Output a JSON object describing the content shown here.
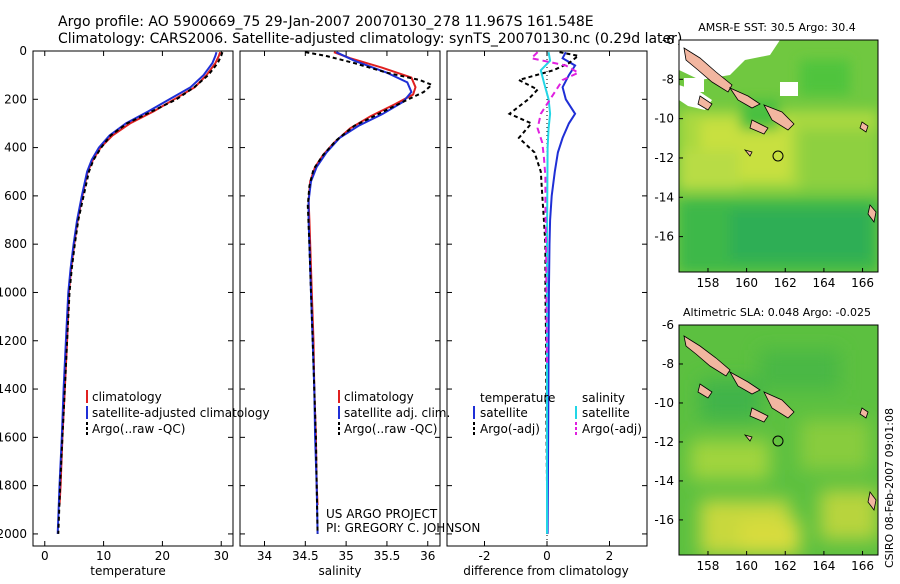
{
  "header": {
    "line1": "Argo profile: AO 5900669_75 29-Jan-2007 20070130_278 11.967S 161.548E",
    "line2": "Climatology: CARS2006. Satellite-adjusted climatology: synTS_20070130.nc (0.29d later)"
  },
  "footer": {
    "project": "US ARGO PROJECT",
    "pi": "PI: GREGORY C. JOHNSON",
    "stamp": "CSIRO 08-Feb-2007 09:01:08"
  },
  "colors": {
    "climatology": "#e02020",
    "satellite": "#1f2fd6",
    "argo": "#000000",
    "satellite_diff": "#22d6e6",
    "argo_diff": "#e020e0",
    "land": "#f2b6a0"
  },
  "chart_data": [
    {
      "type": "line",
      "id": "temperature",
      "xlabel": "temperature",
      "ylabel": "",
      "xlim": [
        -2,
        32
      ],
      "ylim": [
        2050,
        0
      ],
      "xticks": [
        0,
        10,
        20,
        30
      ],
      "yticks": [
        0,
        200,
        400,
        600,
        800,
        1000,
        1200,
        1400,
        1600,
        1800,
        2000
      ],
      "legend": [
        "climatology",
        "satellite-adjusted climatology",
        "Argo(..raw -QC)"
      ],
      "series": [
        {
          "name": "climatology",
          "color": "#e02020",
          "dash": "",
          "points": [
            [
              29.8,
              5
            ],
            [
              29.6,
              20
            ],
            [
              29.0,
              50
            ],
            [
              27.5,
              100
            ],
            [
              25.5,
              150
            ],
            [
              22.0,
              200
            ],
            [
              18.5,
              250
            ],
            [
              14.5,
              300
            ],
            [
              11.5,
              350
            ],
            [
              9.5,
              400
            ],
            [
              8.2,
              450
            ],
            [
              7.3,
              500
            ],
            [
              6.4,
              600
            ],
            [
              5.6,
              700
            ],
            [
              5.0,
              800
            ],
            [
              4.5,
              900
            ],
            [
              4.1,
              1000
            ],
            [
              3.8,
              1200
            ],
            [
              3.4,
              1400
            ],
            [
              3.0,
              1600
            ],
            [
              2.7,
              1800
            ],
            [
              2.5,
              1880
            ]
          ]
        },
        {
          "name": "satellite-adjusted climatology",
          "color": "#1f2fd6",
          "dash": "",
          "points": [
            [
              29.2,
              5
            ],
            [
              29.0,
              20
            ],
            [
              28.5,
              50
            ],
            [
              27.0,
              100
            ],
            [
              24.8,
              150
            ],
            [
              21.2,
              200
            ],
            [
              17.6,
              250
            ],
            [
              13.8,
              300
            ],
            [
              11.0,
              350
            ],
            [
              9.2,
              400
            ],
            [
              8.0,
              450
            ],
            [
              7.2,
              500
            ],
            [
              6.3,
              600
            ],
            [
              5.5,
              700
            ],
            [
              4.9,
              800
            ],
            [
              4.4,
              900
            ],
            [
              4.0,
              1000
            ],
            [
              3.6,
              1200
            ],
            [
              3.2,
              1400
            ],
            [
              2.9,
              1600
            ],
            [
              2.5,
              1800
            ],
            [
              2.2,
              2000
            ]
          ]
        },
        {
          "name": "Argo(..raw -QC)",
          "color": "#000000",
          "dash": "4,3",
          "points": [
            [
              30.2,
              5
            ],
            [
              30.0,
              20
            ],
            [
              29.4,
              50
            ],
            [
              27.8,
              100
            ],
            [
              25.4,
              150
            ],
            [
              22.4,
              200
            ],
            [
              18.2,
              250
            ],
            [
              14.0,
              300
            ],
            [
              11.2,
              350
            ],
            [
              9.6,
              400
            ],
            [
              8.3,
              450
            ],
            [
              7.5,
              500
            ],
            [
              6.6,
              600
            ],
            [
              5.7,
              700
            ],
            [
              5.1,
              800
            ],
            [
              4.6,
              900
            ],
            [
              4.2,
              1000
            ],
            [
              3.8,
              1200
            ],
            [
              3.4,
              1400
            ],
            [
              3.0,
              1600
            ],
            [
              2.6,
              1800
            ],
            [
              2.3,
              2000
            ]
          ]
        }
      ]
    },
    {
      "type": "line",
      "id": "salinity",
      "xlabel": "salinity",
      "xlim": [
        33.7,
        36.15
      ],
      "ylim": [
        2050,
        0
      ],
      "xticks": [
        34,
        34.5,
        35,
        35.5,
        36
      ],
      "legend": [
        "climatology",
        "satellite adj. clim.",
        "Argo(..raw -QC)"
      ],
      "series": [
        {
          "name": "climatology",
          "color": "#e02020",
          "dash": "",
          "points": [
            [
              34.85,
              5
            ],
            [
              35.05,
              30
            ],
            [
              35.45,
              70
            ],
            [
              35.8,
              110
            ],
            [
              35.85,
              150
            ],
            [
              35.82,
              180
            ],
            [
              35.6,
              220
            ],
            [
              35.3,
              270
            ],
            [
              35.05,
              320
            ],
            [
              34.85,
              380
            ],
            [
              34.72,
              430
            ],
            [
              34.62,
              480
            ],
            [
              34.56,
              540
            ],
            [
              34.54,
              620
            ],
            [
              34.55,
              700
            ],
            [
              34.56,
              800
            ],
            [
              34.57,
              900
            ],
            [
              34.58,
              1000
            ],
            [
              34.6,
              1200
            ],
            [
              34.61,
              1400
            ],
            [
              34.63,
              1600
            ],
            [
              34.64,
              1800
            ],
            [
              34.65,
              1880
            ]
          ]
        },
        {
          "name": "satellite adj. clim.",
          "color": "#1f2fd6",
          "dash": "",
          "points": [
            [
              34.88,
              5
            ],
            [
              35.1,
              40
            ],
            [
              35.5,
              90
            ],
            [
              35.75,
              130
            ],
            [
              35.8,
              170
            ],
            [
              35.7,
              210
            ],
            [
              35.45,
              260
            ],
            [
              35.15,
              310
            ],
            [
              34.92,
              360
            ],
            [
              34.76,
              420
            ],
            [
              34.64,
              480
            ],
            [
              34.57,
              540
            ],
            [
              34.54,
              620
            ],
            [
              34.54,
              700
            ],
            [
              34.55,
              800
            ],
            [
              34.56,
              900
            ],
            [
              34.57,
              1000
            ],
            [
              34.59,
              1200
            ],
            [
              34.61,
              1400
            ],
            [
              34.62,
              1600
            ],
            [
              34.64,
              1800
            ],
            [
              34.65,
              2000
            ]
          ]
        },
        {
          "name": "Argo(..raw -QC)",
          "color": "#000000",
          "dash": "4,3",
          "points": [
            [
              34.5,
              5
            ],
            [
              34.75,
              20
            ],
            [
              35.1,
              50
            ],
            [
              35.5,
              90
            ],
            [
              35.9,
              120
            ],
            [
              36.05,
              140
            ],
            [
              35.95,
              170
            ],
            [
              35.7,
              210
            ],
            [
              35.4,
              260
            ],
            [
              35.1,
              310
            ],
            [
              34.88,
              370
            ],
            [
              34.72,
              430
            ],
            [
              34.6,
              490
            ],
            [
              34.55,
              560
            ],
            [
              34.53,
              640
            ],
            [
              34.54,
              720
            ],
            [
              34.55,
              800
            ],
            [
              34.56,
              900
            ],
            [
              34.57,
              1000
            ],
            [
              34.59,
              1200
            ],
            [
              34.61,
              1400
            ],
            [
              34.63,
              1600
            ],
            [
              34.64,
              1800
            ],
            [
              34.65,
              2000
            ]
          ]
        }
      ]
    },
    {
      "type": "line",
      "id": "difference",
      "xlabel": "difference from climatology",
      "xlim": [
        -3.2,
        3.2
      ],
      "ylim": [
        2050,
        0
      ],
      "xticks": [
        -2,
        0,
        2
      ],
      "legend_temperature": {
        "title": "temperature",
        "items": [
          "satellite",
          "Argo(-adj)"
        ]
      },
      "legend_salinity": {
        "title": "salinity",
        "items": [
          "satellite",
          "Argo(-adj)"
        ]
      },
      "series": [
        {
          "name": "temperature satellite",
          "color": "#1f2fd6",
          "dash": "",
          "points": [
            [
              0.6,
              5
            ],
            [
              0.5,
              30
            ],
            [
              0.9,
              60
            ],
            [
              0.7,
              100
            ],
            [
              0.5,
              150
            ],
            [
              0.6,
              200
            ],
            [
              0.9,
              260
            ],
            [
              0.7,
              300
            ],
            [
              0.5,
              360
            ],
            [
              0.35,
              420
            ],
            [
              0.25,
              500
            ],
            [
              0.15,
              600
            ],
            [
              0.1,
              700
            ],
            [
              0.08,
              800
            ],
            [
              0.06,
              1000
            ],
            [
              0.05,
              1200
            ],
            [
              0.04,
              1500
            ],
            [
              0.03,
              1800
            ],
            [
              0.02,
              2000
            ]
          ]
        },
        {
          "name": "temperature Argo(-adj)",
          "color": "#000000",
          "dash": "4,3",
          "points": [
            [
              0.4,
              5
            ],
            [
              1.0,
              20
            ],
            [
              0.7,
              50
            ],
            [
              0.2,
              80
            ],
            [
              -0.9,
              120
            ],
            [
              -0.3,
              160
            ],
            [
              -0.6,
              200
            ],
            [
              -1.2,
              260
            ],
            [
              -0.5,
              300
            ],
            [
              -0.9,
              360
            ],
            [
              -0.4,
              420
            ],
            [
              -0.2,
              500
            ],
            [
              -0.15,
              600
            ],
            [
              -0.1,
              700
            ],
            [
              -0.05,
              800
            ],
            [
              -0.05,
              1000
            ],
            [
              -0.03,
              1200
            ],
            [
              -0.02,
              1500
            ],
            [
              0.0,
              1800
            ],
            [
              0.0,
              2000
            ]
          ]
        },
        {
          "name": "salinity satellite",
          "color": "#22d6e6",
          "dash": "",
          "points": [
            [
              0.05,
              5
            ],
            [
              0.1,
              40
            ],
            [
              -0.2,
              80
            ],
            [
              -0.1,
              130
            ],
            [
              0.05,
              200
            ],
            [
              0.1,
              260
            ],
            [
              0.05,
              320
            ],
            [
              0.02,
              400
            ],
            [
              0.01,
              600
            ],
            [
              0.0,
              800
            ],
            [
              0.0,
              1200
            ],
            [
              0.0,
              1600
            ],
            [
              0.0,
              2000
            ]
          ]
        },
        {
          "name": "salinity Argo(-adj)",
          "color": "#e020e0",
          "dash": "6,4",
          "points": [
            [
              -0.3,
              5
            ],
            [
              -0.5,
              30
            ],
            [
              0.6,
              60
            ],
            [
              1.0,
              90
            ],
            [
              0.5,
              120
            ],
            [
              0.3,
              160
            ],
            [
              0.1,
              200
            ],
            [
              -0.2,
              260
            ],
            [
              -0.3,
              320
            ],
            [
              -0.15,
              380
            ],
            [
              -0.1,
              440
            ],
            [
              -0.05,
              520
            ],
            [
              -0.05,
              640
            ],
            [
              -0.03,
              800
            ],
            [
              -0.02,
              1000
            ],
            [
              0.0,
              1300
            ]
          ]
        }
      ]
    },
    {
      "type": "heatmap",
      "id": "sst-map",
      "title": "AMSR-E SST: 30.5 Argo: 30.4",
      "xlim": [
        156.5,
        166.8
      ],
      "ylim": [
        -17.8,
        -6
      ],
      "xticks": [
        158,
        160,
        162,
        164,
        166
      ],
      "yticks": [
        -6,
        -8,
        -10,
        -12,
        -14,
        -16
      ],
      "float_position": {
        "lon": 161.548,
        "lat": -11.967
      }
    },
    {
      "type": "heatmap",
      "id": "sla-map",
      "title": "Altimetric SLA: 0.048 Argo: -0.025",
      "xlim": [
        156.5,
        166.8
      ],
      "ylim": [
        -17.8,
        -6
      ],
      "xticks": [
        158,
        160,
        162,
        164,
        166
      ],
      "yticks": [
        -6,
        -8,
        -10,
        -12,
        -14,
        -16
      ],
      "float_position": {
        "lon": 161.548,
        "lat": -11.967
      }
    }
  ]
}
